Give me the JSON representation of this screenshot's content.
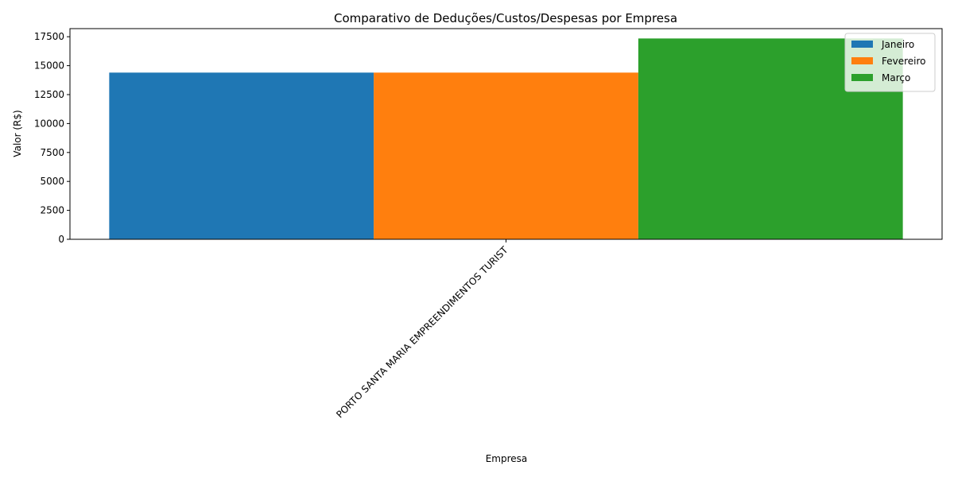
{
  "chart_data": {
    "type": "bar",
    "title": "Comparativo de Deduções/Custos/Despesas por Empresa",
    "xlabel": "Empresa",
    "ylabel": "Valor (R$)",
    "categories": [
      "PORTO SANTA MARIA EMPREENDIMENTOS TURIST"
    ],
    "series": [
      {
        "name": "Janeiro",
        "values": [
          14400
        ],
        "color": "#1f77b4"
      },
      {
        "name": "Fevereiro",
        "values": [
          14400
        ],
        "color": "#ff7f0e"
      },
      {
        "name": "Março",
        "values": [
          17350
        ],
        "color": "#2ca02c"
      }
    ],
    "ylim": [
      0,
      18200
    ],
    "yticks": [
      0,
      2500,
      5000,
      7500,
      10000,
      12500,
      15000,
      17500
    ],
    "grid": false,
    "legend_position": "top-right"
  }
}
